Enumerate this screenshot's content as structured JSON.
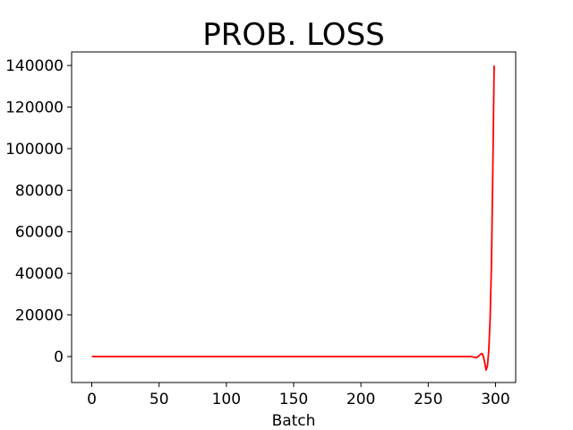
{
  "chart_data": {
    "type": "line",
    "title": "PROB. LOSS",
    "xlabel": "Batch",
    "ylabel": "",
    "xlim": [
      -15,
      315
    ],
    "ylim": [
      -12500,
      146500
    ],
    "xticks": [
      0,
      50,
      100,
      150,
      200,
      250,
      300
    ],
    "yticks": [
      0,
      20000,
      40000,
      60000,
      80000,
      100000,
      120000,
      140000
    ],
    "grid": false,
    "legend": "none",
    "series": [
      {
        "color": "#ff0000",
        "x": [
          0,
          20,
          40,
          60,
          80,
          100,
          120,
          140,
          160,
          180,
          200,
          220,
          240,
          260,
          270,
          278,
          282,
          284,
          286,
          288,
          289,
          290,
          291,
          292,
          293,
          294,
          295,
          296,
          297,
          298,
          299
        ],
        "y": [
          0,
          0,
          0,
          0,
          0,
          0,
          0,
          0,
          0,
          0,
          0,
          0,
          0,
          0,
          0,
          0,
          0,
          -300,
          -500,
          500,
          1200,
          1500,
          0,
          -3000,
          -6500,
          -4500,
          3000,
          18000,
          45000,
          90000,
          140000
        ]
      }
    ]
  }
}
